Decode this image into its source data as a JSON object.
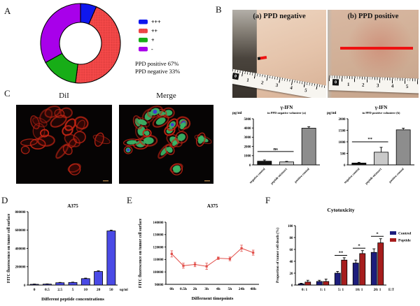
{
  "panels": {
    "a": "A",
    "b": "B",
    "c": "C",
    "d": "D",
    "e": "E",
    "f": "F"
  },
  "panel_b": {
    "photo_a_label": "(a) PPD negative",
    "photo_b_label": "(b) PPD positive",
    "ruler_numbers": [
      "0",
      "1",
      "2",
      "3",
      "4",
      "5"
    ]
  },
  "panel_c": {
    "left_title": "DiI",
    "right_title": "Merge"
  },
  "chart_data": [
    {
      "id": "ppd-donut",
      "type": "pie",
      "donut": true,
      "labels": [
        "+++",
        "++",
        "+",
        "-"
      ],
      "values": [
        6.5,
        45.5,
        15,
        33
      ],
      "colors": [
        "#0f17ee",
        "#fa4b4b",
        "#17ad17",
        "#a800ea"
      ],
      "notes": [
        "PPD positive 67%",
        "PPD negative 33%"
      ],
      "legend_position": "right"
    },
    {
      "id": "ifn-negative",
      "type": "bar",
      "title": "γ-IFN",
      "subtitle": "in PPD negative volunteer (a)",
      "ylabel": "pg/ml",
      "categories": [
        "negative control",
        "peptide mixture1",
        "positive control"
      ],
      "values": [
        400,
        320,
        3980
      ],
      "errors": [
        130,
        60,
        160
      ],
      "colors": [
        "#141414",
        "#c9c9c9",
        "#8d8d8d"
      ],
      "ylim": [
        0,
        5000
      ],
      "ytick": 1000,
      "sig": {
        "label": "ns",
        "from": 0,
        "to": 1,
        "y": 1450
      }
    },
    {
      "id": "ifn-positive",
      "type": "bar",
      "title": "γ-IFN",
      "subtitle": "in PPD positive volunteer (b)",
      "ylabel": "pg/ml",
      "categories": [
        "negative control",
        "peptide mixture1",
        "positive control"
      ],
      "values": [
        80,
        550,
        1520
      ],
      "errors": [
        30,
        210,
        70
      ],
      "colors": [
        "#141414",
        "#c9c9c9",
        "#8d8d8d"
      ],
      "ylim": [
        0,
        2000
      ],
      "ytick": 500,
      "sig": {
        "label": "**",
        "from": 0,
        "to": 1,
        "y": 1000
      }
    },
    {
      "id": "a375-concentrations",
      "type": "bar",
      "title": "A375",
      "ylabel": "FITC fluorescence on tumor cell surface",
      "xlabel": "Different peptide concentrations",
      "xunit": "ug/ml",
      "categories": [
        "0",
        "0.5",
        "2.5",
        "5",
        "10",
        "20",
        "50"
      ],
      "values": [
        8000,
        10000,
        25000,
        28000,
        70000,
        148000,
        590000
      ],
      "errors": [
        3000,
        2500,
        3500,
        3500,
        5500,
        7000,
        9000
      ],
      "bar_color": "#4a4ae6",
      "ylim": [
        0,
        800000
      ],
      "ytick": 200000
    },
    {
      "id": "a375-timepoints",
      "type": "line",
      "title": "A375",
      "ylabel": "FITC fluorescence on tumor cell surface",
      "xlabel": "Differnent timepoints",
      "categories": [
        "0h",
        "0.5h",
        "2h",
        "3h",
        "4h",
        "5h",
        "24h",
        "48h"
      ],
      "values": [
        114500,
        105000,
        106000,
        104500,
        111000,
        110500,
        119000,
        115500
      ],
      "errors": [
        2500,
        2000,
        1800,
        2500,
        1000,
        1500,
        2500,
        2000
      ],
      "line_color": "#e2514c",
      "ylim": [
        90000,
        140000
      ],
      "ytick": 10000
    },
    {
      "id": "cytotoxicity",
      "type": "bar",
      "grouped": true,
      "title": "Cytotoxicity",
      "ylabel": "Proportion of tumor cell death (%)",
      "xunit": "E:T",
      "categories": [
        "0: 1",
        "1: 1",
        "5: 1",
        "10: 1",
        "20: 1"
      ],
      "series": [
        {
          "name": "Control",
          "color": "#1d1d7c",
          "values": [
            2,
            6,
            20,
            37,
            55
          ],
          "errors": [
            1,
            2,
            3,
            5,
            6
          ]
        },
        {
          "name": "Peptide",
          "color": "#a61d1d",
          "values": [
            5,
            6,
            42,
            53,
            71
          ],
          "errors": [
            3,
            4,
            4,
            5,
            7
          ]
        }
      ],
      "ylim": [
        0,
        100
      ],
      "ytick": 20,
      "legend_position": "right",
      "sigs": [
        {
          "label": "**",
          "group": 2,
          "y": 50
        },
        {
          "label": "*",
          "group": 3,
          "y": 62
        },
        {
          "label": "*",
          "group": 4,
          "y": 82
        }
      ]
    }
  ]
}
